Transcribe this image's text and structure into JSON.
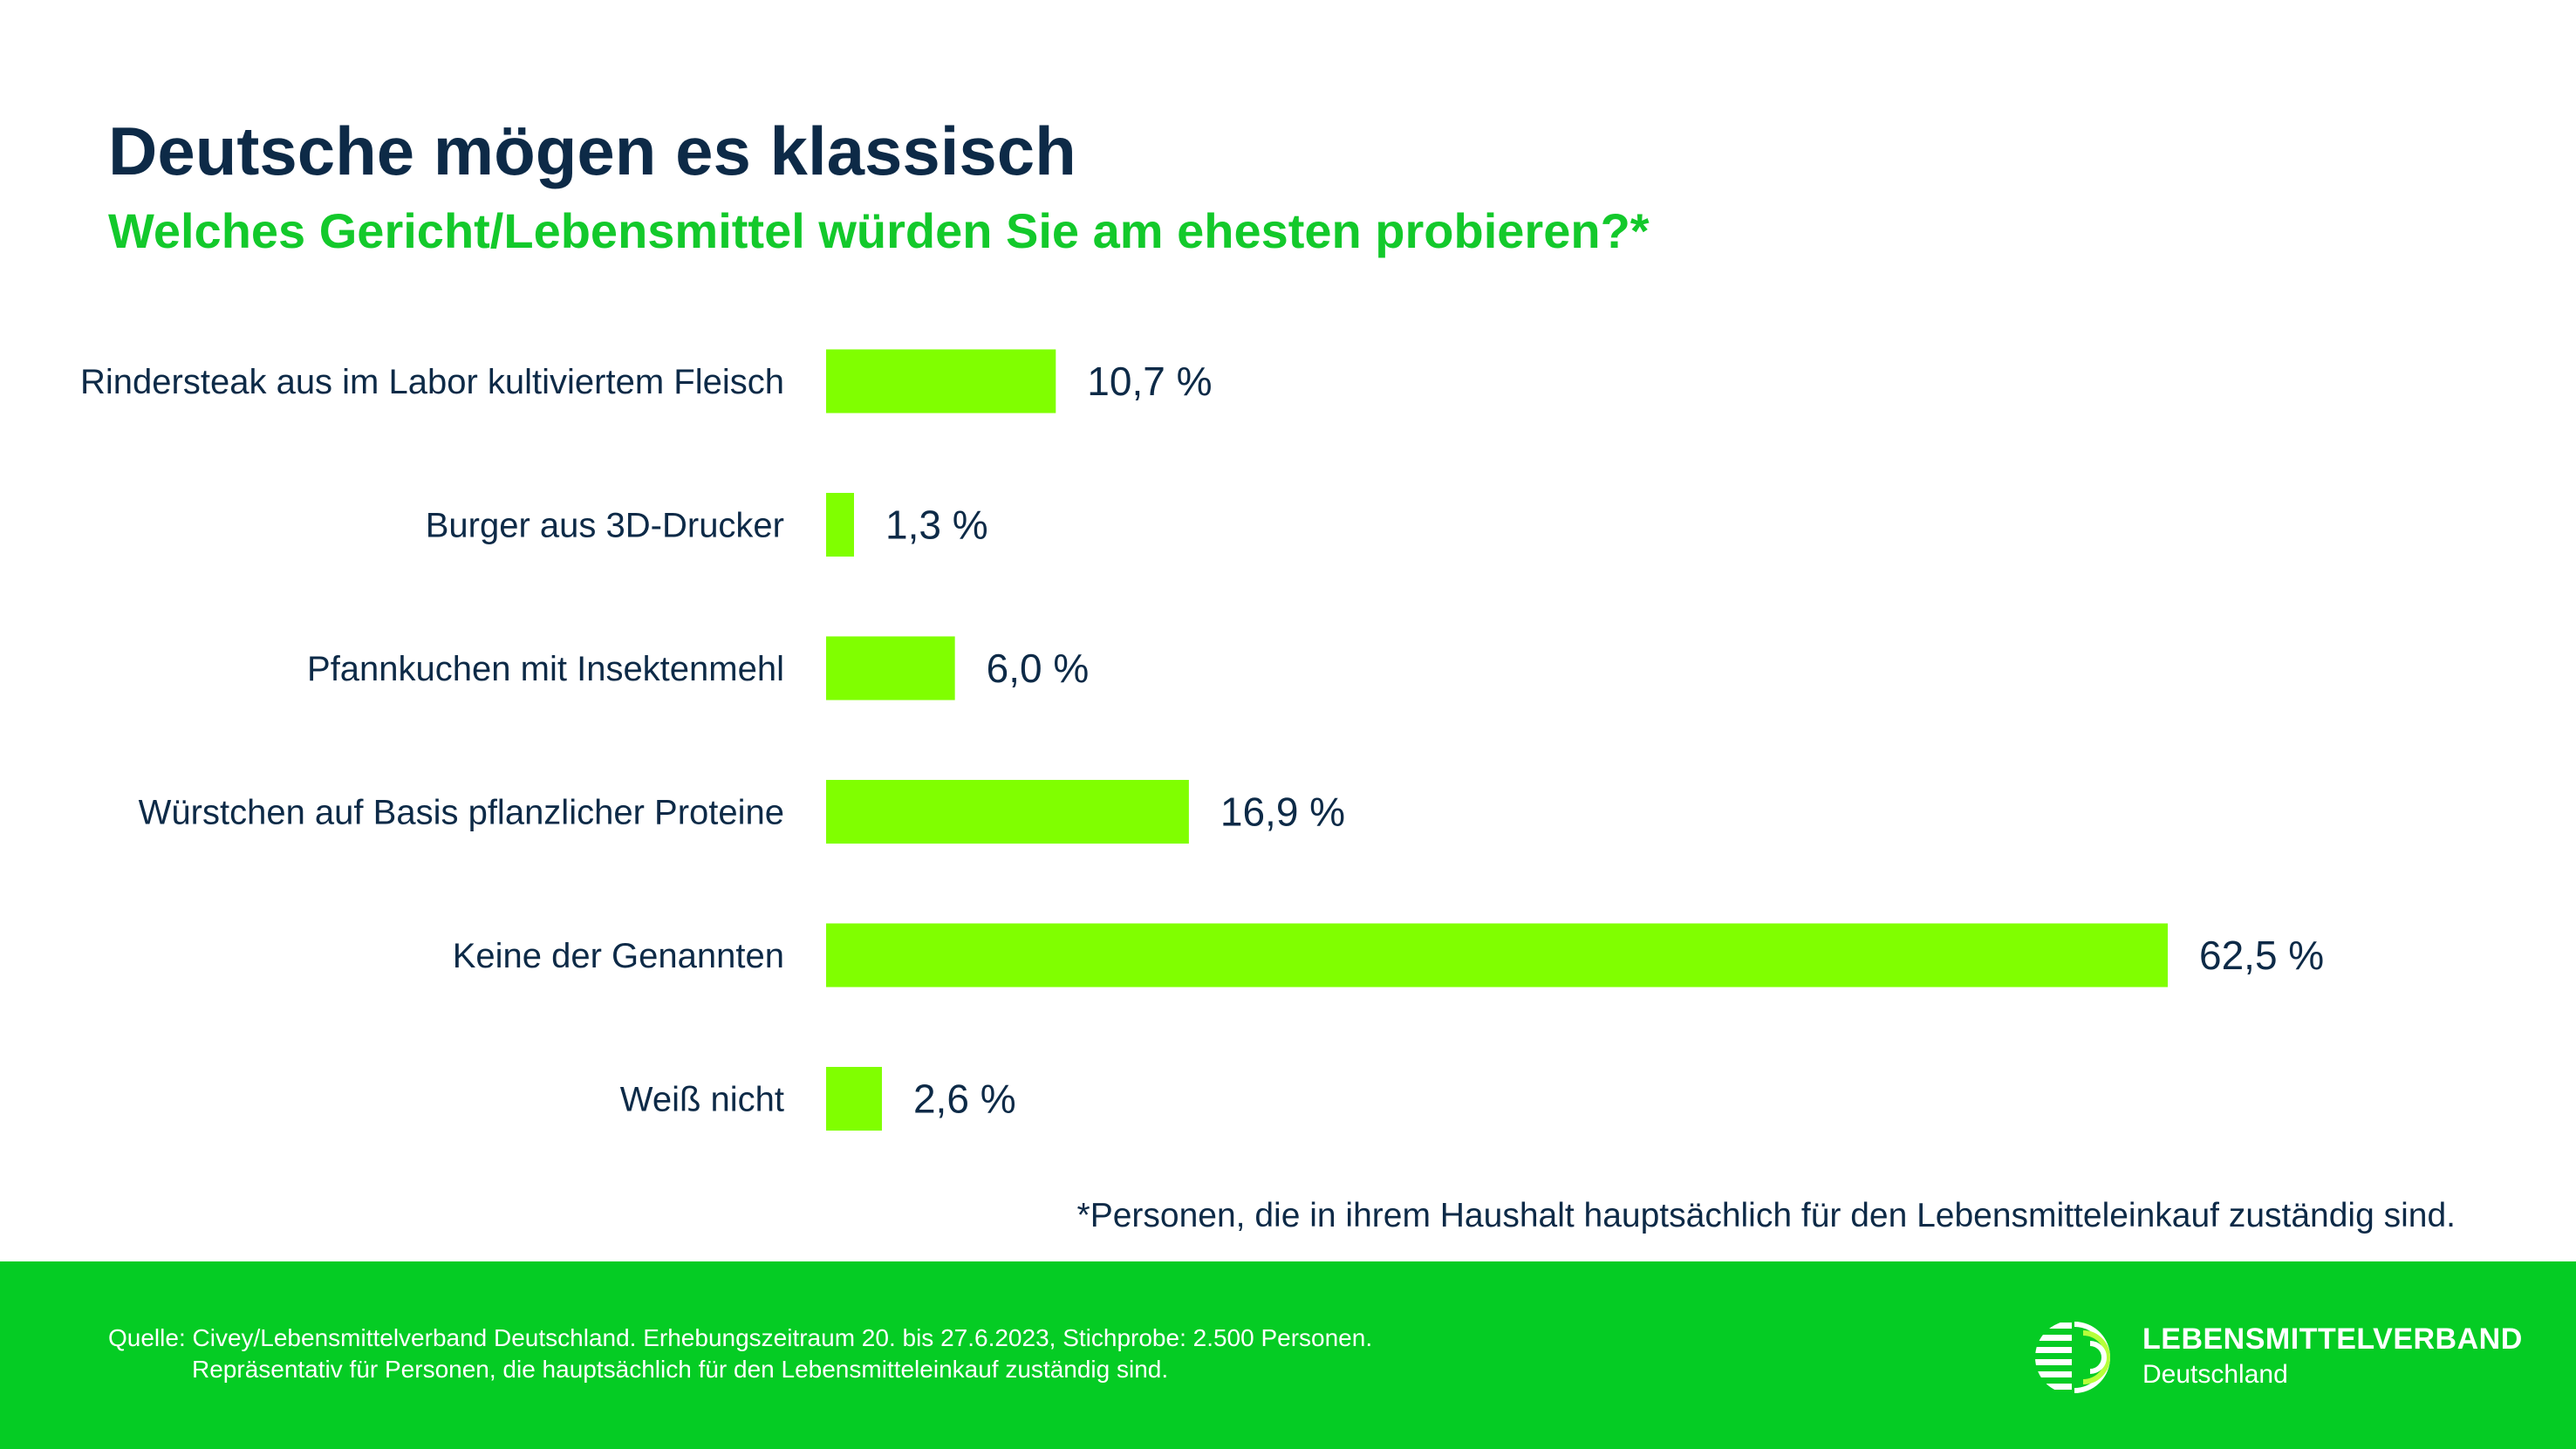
{
  "header": {
    "title": "Deutsche mögen es klassisch",
    "subtitle": "Welches Gericht/Lebensmittel würden Sie am ehesten probieren?*"
  },
  "chart_data": {
    "type": "bar",
    "orientation": "horizontal",
    "categories": [
      "Rindersteak aus im Labor kultiviertem Fleisch",
      "Burger aus 3D-Drucker",
      "Pfannkuchen mit Insektenmehl",
      "Würstchen auf Basis pflanzlicher Proteine",
      "Keine der Genannten",
      "Weiß nicht"
    ],
    "values": [
      10.7,
      1.3,
      6.0,
      16.9,
      62.5,
      2.6
    ],
    "value_labels": [
      "10,7 %",
      "1,3 %",
      "6,0 %",
      "16,9 %",
      "62,5 %",
      "2,6 %"
    ],
    "xlim": [
      0,
      62.5
    ],
    "grid": false,
    "bar_color": "#80ff00"
  },
  "footnote": "*Personen, die in ihrem Haushalt hauptsächlich für den Lebensmitteleinkauf zuständig sind.",
  "footer": {
    "source_line1": "Quelle: Civey/Lebensmittelverband Deutschland. Erhebungszeitraum 20. bis 27.6.2023, Stichprobe: 2.500 Personen.",
    "source_line2": "Repräsentativ für Personen, die hauptsächlich für den Lebensmitteleinkauf zuständig sind.",
    "logo_name": "LEBENSMITTELVERBAND",
    "logo_sub": "Deutschland",
    "logo_icon": "lebensmittelverband-logo-icon"
  },
  "colors": {
    "title": "#0d2a47",
    "accent": "#13c92b",
    "footer_bg": "#05cc24",
    "bar": "#80ff00"
  }
}
